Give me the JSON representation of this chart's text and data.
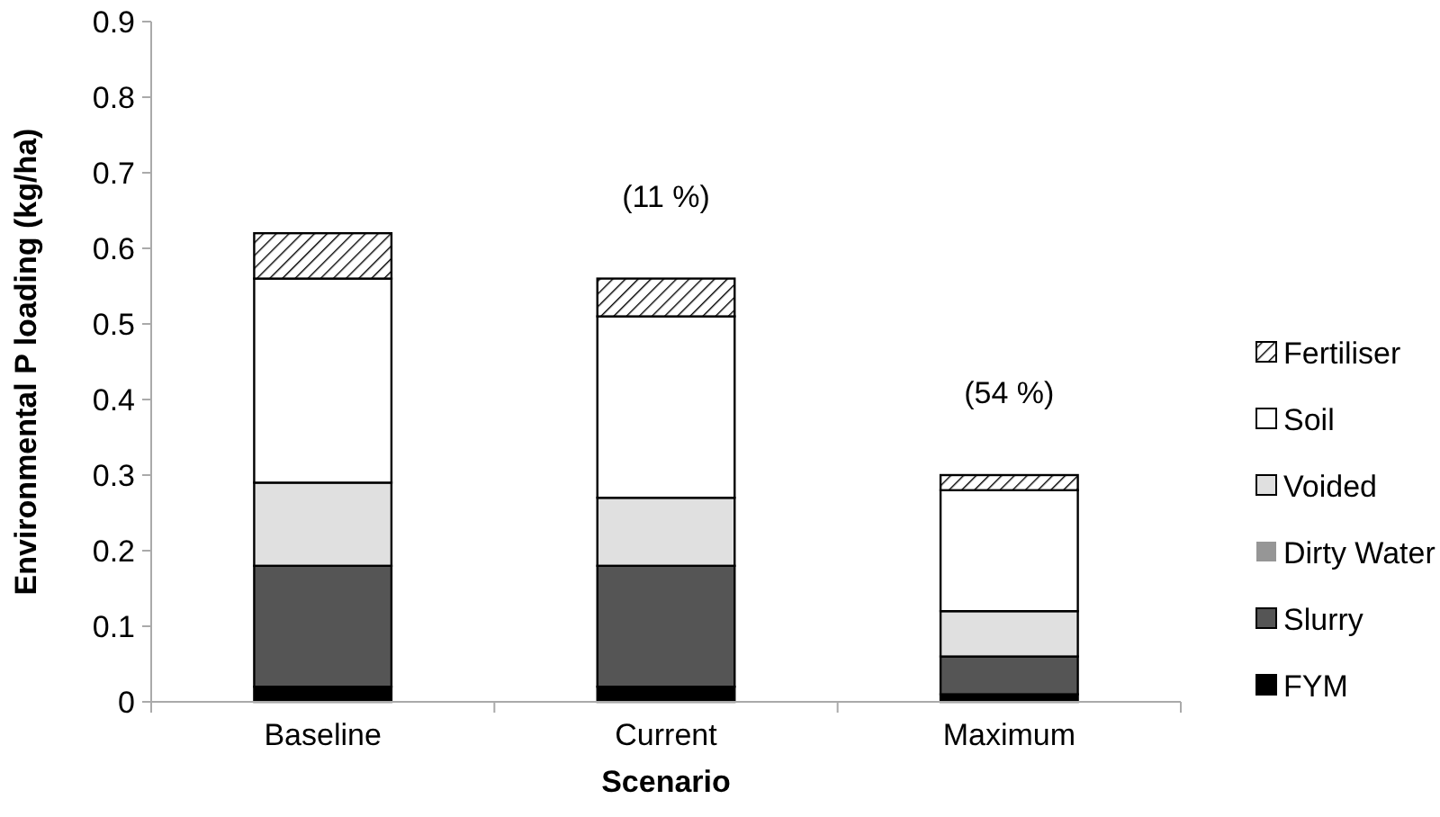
{
  "chart_data": {
    "type": "bar",
    "stacked": true,
    "xlabel": "Scenario",
    "ylabel": "Environmental P  loading (kg/ha)",
    "categories": [
      "Baseline",
      "Current",
      "Maximum"
    ],
    "series": [
      {
        "name": "FYM",
        "color": "#000000",
        "values": [
          0.02,
          0.02,
          0.01
        ]
      },
      {
        "name": "Slurry",
        "color": "#555555",
        "values": [
          0.16,
          0.16,
          0.05
        ]
      },
      {
        "name": "Dirty Water",
        "color": "#969696",
        "values": [
          0,
          0,
          0
        ]
      },
      {
        "name": "Voided",
        "color": "#e0e0e0",
        "values": [
          0.11,
          0.09,
          0.06
        ]
      },
      {
        "name": "Soil",
        "color": "#ffffff",
        "values": [
          0.27,
          0.24,
          0.16
        ]
      },
      {
        "name": "Fertiliser",
        "color": "#000000",
        "values": [
          0.06,
          0.05,
          0.02
        ]
      }
    ],
    "ylim": [
      0,
      0.9
    ],
    "yticks": [
      0,
      0.1,
      0.2,
      0.3,
      0.4,
      0.5,
      0.6,
      0.7,
      0.8,
      0.9
    ],
    "legend": "right",
    "grid": false,
    "annotations": [
      "(11 %)",
      "(54 %)"
    ]
  }
}
